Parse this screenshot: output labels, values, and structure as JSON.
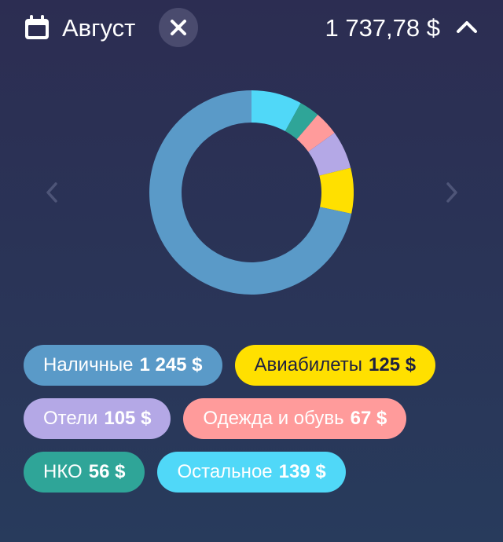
{
  "header": {
    "calendar_icon": "calendar-icon",
    "month_label": "Август",
    "close_icon": "close-icon",
    "total": "1 737,78 $",
    "collapse_icon": "chevron-up-icon"
  },
  "navigation": {
    "prev_icon": "chevron-left-icon",
    "next_icon": "chevron-right-icon"
  },
  "colors": {
    "background": "#2c2d52",
    "cash": "#5a9ac8",
    "airline": "#ffe000",
    "hotels": "#b4a8e6",
    "clothing": "#ff9b9b",
    "nko": "#2fa598",
    "other": "#50d8f8"
  },
  "chart_data": {
    "type": "pie",
    "donut": true,
    "categories": [
      "Наличные",
      "Авиабилеты",
      "Отели",
      "Одежда и обувь",
      "НКО",
      "Остальное"
    ],
    "values": [
      1245,
      125,
      105,
      67,
      56,
      139
    ],
    "series": [
      {
        "slices": [
          {
            "label": "Остальное",
            "value": 139,
            "color": "#50d8f8"
          },
          {
            "label": "НКО",
            "value": 56,
            "color": "#2fa598"
          },
          {
            "label": "Одежда и обувь",
            "value": 67,
            "color": "#ff9b9b"
          },
          {
            "label": "Отели",
            "value": 105,
            "color": "#b4a8e6"
          },
          {
            "label": "Авиабилеты",
            "value": 125,
            "color": "#ffe000"
          },
          {
            "label": "Наличные",
            "value": 1245,
            "color": "#5a9ac8"
          }
        ]
      }
    ]
  },
  "legend": [
    {
      "label": "Наличные",
      "amount": "1 245 $"
    },
    {
      "label": "Авиабилеты",
      "amount": "125 $"
    },
    {
      "label": "Отели",
      "amount": "105 $"
    },
    {
      "label": "Одежда и обувь",
      "amount": "67 $"
    },
    {
      "label": "НКО",
      "amount": "56 $"
    },
    {
      "label": "Остальное",
      "amount": "139 $"
    }
  ]
}
